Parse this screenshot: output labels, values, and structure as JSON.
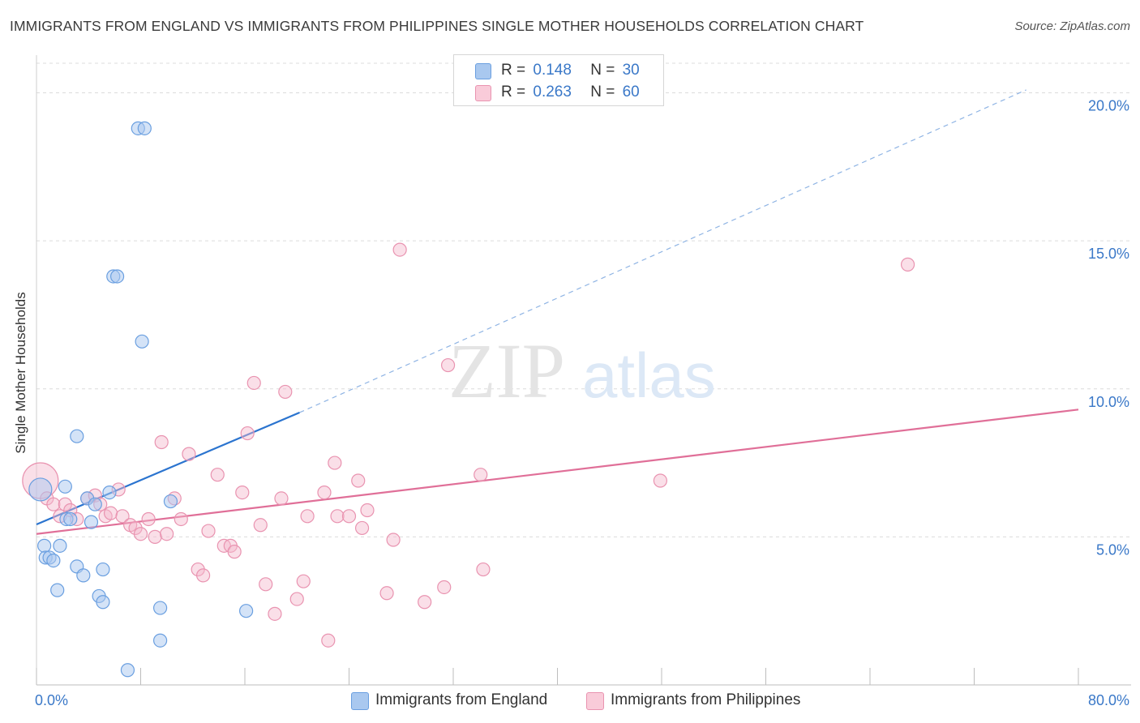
{
  "header": {
    "title": "IMMIGRANTS FROM ENGLAND VS IMMIGRANTS FROM PHILIPPINES SINGLE MOTHER HOUSEHOLDS CORRELATION CHART",
    "source": "Source: ZipAtlas.com"
  },
  "watermark": {
    "zip": "ZIP",
    "atlas": "atlas"
  },
  "legend": {
    "england": {
      "r_label": "R =",
      "r_value": "0.148",
      "n_label": "N =",
      "n_value": "30"
    },
    "philippines": {
      "r_label": "R =",
      "r_value": "0.263",
      "n_label": "N =",
      "n_value": "60"
    }
  },
  "colors": {
    "england_fill": "#a9c8ef",
    "england_stroke": "#6a9fe0",
    "england_line": "#2b74cf",
    "philippines_fill": "#f5b8cb",
    "philippines_stroke": "#e993b0",
    "philippines_line": "#e06f98",
    "tick_label": "#3a78c8",
    "grid": "#dcdcdc"
  },
  "chart_data": {
    "type": "scatter",
    "title": "IMMIGRANTS FROM ENGLAND VS IMMIGRANTS FROM PHILIPPINES SINGLE MOTHER HOUSEHOLDS CORRELATION CHART",
    "xlabel": "",
    "ylabel": "Single Mother Households",
    "xlim": [
      0,
      80
    ],
    "ylim": [
      0,
      21
    ],
    "x_tick_labels": [
      "0.0%",
      "80.0%"
    ],
    "y_ticks": [
      5,
      10,
      15,
      20
    ],
    "y_tick_labels": [
      "5.0%",
      "10.0%",
      "15.0%",
      "20.0%"
    ],
    "grid": true,
    "series": [
      {
        "name": "Immigrants from England",
        "R": 0.148,
        "N": 30,
        "points": [
          [
            0.3,
            6.6
          ],
          [
            0.6,
            4.7
          ],
          [
            0.7,
            4.3
          ],
          [
            1.0,
            4.3
          ],
          [
            1.3,
            4.2
          ],
          [
            1.8,
            4.7
          ],
          [
            1.6,
            3.2
          ],
          [
            2.2,
            6.7
          ],
          [
            2.3,
            5.6
          ],
          [
            2.6,
            5.6
          ],
          [
            3.1,
            8.4
          ],
          [
            3.1,
            4.0
          ],
          [
            3.6,
            3.7
          ],
          [
            3.9,
            6.3
          ],
          [
            4.2,
            5.5
          ],
          [
            4.5,
            6.1
          ],
          [
            4.8,
            3.0
          ],
          [
            5.1,
            2.8
          ],
          [
            5.1,
            3.9
          ],
          [
            5.6,
            6.5
          ],
          [
            5.9,
            13.8
          ],
          [
            6.2,
            13.8
          ],
          [
            7.0,
            0.5
          ],
          [
            7.8,
            18.8
          ],
          [
            8.3,
            18.8
          ],
          [
            8.1,
            11.6
          ],
          [
            9.5,
            2.6
          ],
          [
            9.5,
            1.5
          ],
          [
            10.3,
            6.2
          ],
          [
            16.1,
            2.5
          ]
        ],
        "trend": {
          "x": [
            0,
            20.2
          ],
          "y": [
            5.42,
            9.2
          ]
        },
        "trend_extension": {
          "x": [
            20.2,
            76
          ],
          "y": [
            9.2,
            20.1
          ]
        }
      },
      {
        "name": "Immigrants from Philippines",
        "R": 0.263,
        "N": 60,
        "points": [
          [
            0.3,
            6.9
          ],
          [
            0.8,
            6.3
          ],
          [
            1.3,
            6.1
          ],
          [
            1.8,
            5.7
          ],
          [
            2.2,
            6.1
          ],
          [
            2.6,
            5.9
          ],
          [
            3.1,
            5.6
          ],
          [
            3.9,
            6.3
          ],
          [
            4.5,
            6.4
          ],
          [
            4.9,
            6.1
          ],
          [
            5.3,
            5.7
          ],
          [
            5.7,
            5.8
          ],
          [
            6.3,
            6.6
          ],
          [
            6.6,
            5.7
          ],
          [
            7.2,
            5.4
          ],
          [
            7.6,
            5.3
          ],
          [
            8.0,
            5.1
          ],
          [
            8.6,
            5.6
          ],
          [
            9.1,
            5.0
          ],
          [
            9.6,
            8.2
          ],
          [
            10.0,
            5.1
          ],
          [
            10.6,
            6.3
          ],
          [
            11.1,
            5.6
          ],
          [
            11.7,
            7.8
          ],
          [
            12.4,
            3.9
          ],
          [
            12.8,
            3.7
          ],
          [
            13.2,
            5.2
          ],
          [
            13.9,
            7.1
          ],
          [
            14.4,
            4.7
          ],
          [
            14.9,
            4.7
          ],
          [
            15.2,
            4.5
          ],
          [
            15.8,
            6.5
          ],
          [
            16.2,
            8.5
          ],
          [
            16.7,
            10.2
          ],
          [
            17.2,
            5.4
          ],
          [
            17.6,
            3.4
          ],
          [
            18.3,
            2.4
          ],
          [
            18.8,
            6.3
          ],
          [
            19.1,
            9.9
          ],
          [
            20.0,
            2.9
          ],
          [
            20.5,
            3.5
          ],
          [
            20.8,
            5.7
          ],
          [
            22.1,
            6.5
          ],
          [
            22.4,
            1.5
          ],
          [
            22.9,
            7.5
          ],
          [
            23.1,
            5.7
          ],
          [
            24.0,
            5.7
          ],
          [
            24.7,
            6.9
          ],
          [
            25.4,
            5.9
          ],
          [
            25.0,
            5.3
          ],
          [
            26.9,
            3.1
          ],
          [
            27.4,
            4.9
          ],
          [
            27.9,
            14.7
          ],
          [
            29.8,
            2.8
          ],
          [
            31.3,
            3.3
          ],
          [
            31.6,
            10.8
          ],
          [
            34.1,
            7.1
          ],
          [
            34.3,
            3.9
          ],
          [
            47.9,
            6.9
          ],
          [
            66.9,
            14.2
          ]
        ],
        "trend": {
          "x": [
            0,
            80
          ],
          "y": [
            5.1,
            9.3
          ]
        }
      }
    ]
  },
  "axis": {
    "x_min_label": "0.0%",
    "x_max_label": "80.0%",
    "y_title": "Single Mother Households"
  },
  "bottom_legend": {
    "england_label": "Immigrants from England",
    "philippines_label": "Immigrants from Philippines"
  }
}
